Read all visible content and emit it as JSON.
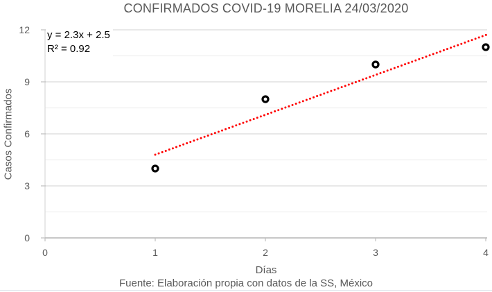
{
  "title": "CONFIRMADOS COVID-19 MORELIA 24/03/2020",
  "footer": "Fuente: Elaboración propia con datos de la SS, México",
  "chart_data": {
    "type": "scatter",
    "title": "CONFIRMADOS COVID-19 MORELIA 24/03/2020",
    "xlabel": "Días",
    "ylabel": "Casos Confirmados",
    "x": [
      1,
      2,
      3,
      4
    ],
    "y": [
      4,
      8,
      10,
      11
    ],
    "xlim": [
      0,
      4
    ],
    "ylim": [
      0,
      12
    ],
    "x_ticks": [
      0,
      1,
      2,
      3,
      4
    ],
    "y_ticks": [
      0,
      3,
      6,
      9,
      12
    ],
    "y_minor_gridlines": [
      1.5,
      4.5,
      7.5,
      10.5
    ],
    "grid": true,
    "legend": "none",
    "marker": {
      "shape": "ring",
      "stroke_color": "#000000",
      "fill_color": "#ffffff"
    },
    "trendline": {
      "type": "linear",
      "slope": 2.3,
      "intercept": 2.5,
      "x_start": 1.0,
      "x_end": 4.03,
      "equation": "y = 2.3x + 2.5",
      "r_squared": "R² = 0.92",
      "color": "#ff0000",
      "style": "dotted"
    },
    "colors": {
      "axis_line": "#bfbfbf",
      "y_axis_line": "#d9d9d9",
      "grid_major": "#d9d9d9",
      "grid_minor": "#f0f0f0",
      "tick_text": "#595959",
      "annotation_text": "#000000"
    }
  }
}
